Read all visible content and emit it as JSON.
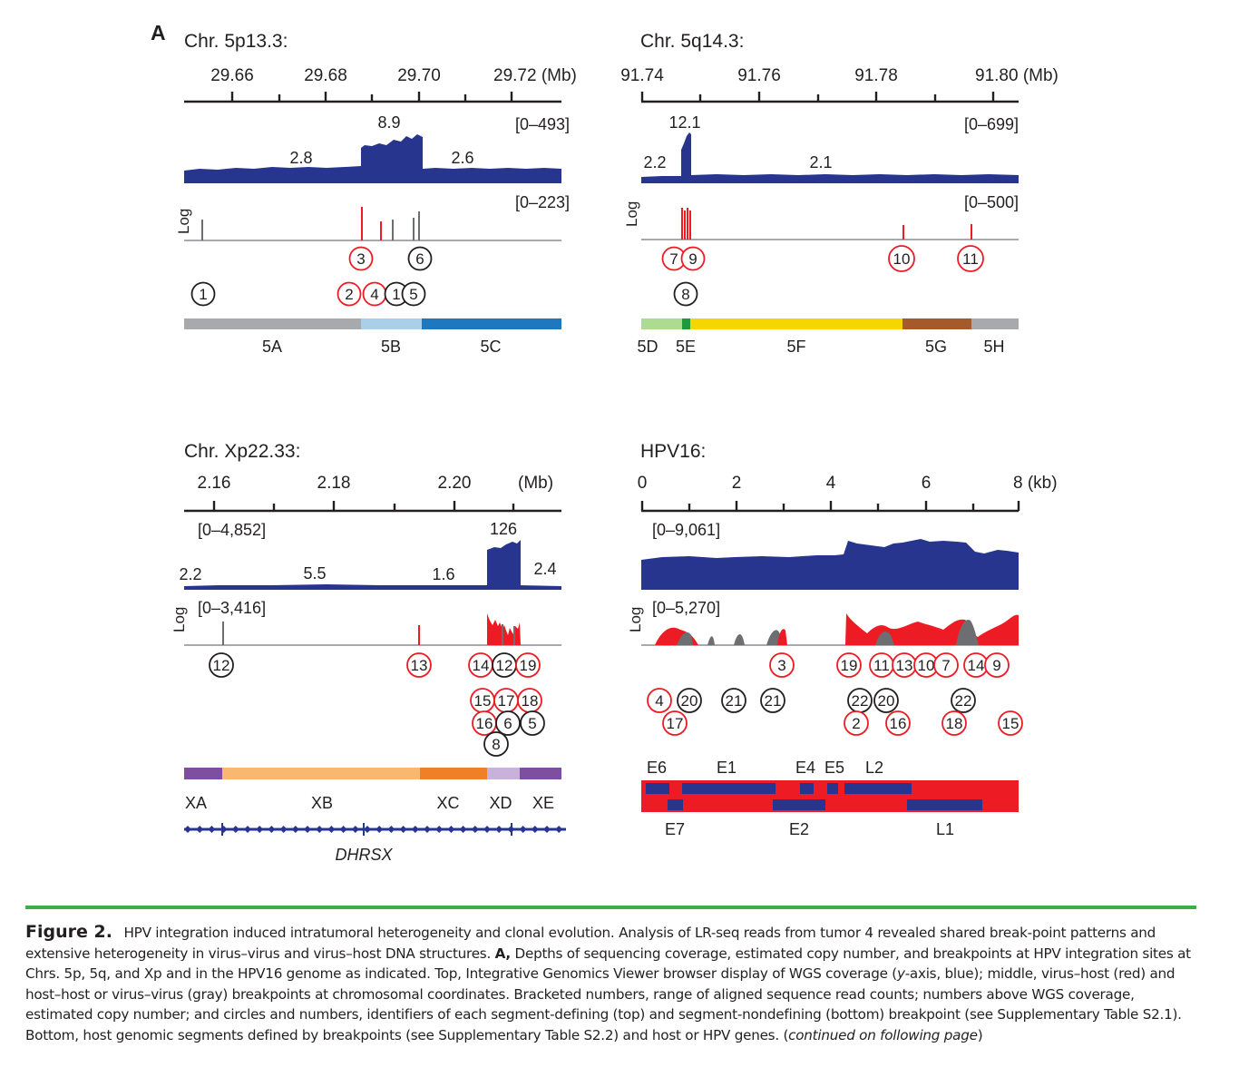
{
  "panel_letter": "A",
  "panels": {
    "chr5p": {
      "title": "Chr. 5p13.3:",
      "ticks": [
        "29.66",
        "29.68",
        "29.70",
        "29.72 (Mb)"
      ],
      "cov_range": "[0–493]",
      "cn_labels": [
        "2.8",
        "8.9",
        "2.6"
      ],
      "bp_range": "[0–223]",
      "log_label": "Log",
      "circles": [
        "3",
        "6",
        "1",
        "2",
        "4",
        "1",
        "5"
      ],
      "segments": [
        "5A",
        "5B",
        "5C"
      ]
    },
    "chr5q": {
      "title": "Chr. 5q14.3:",
      "ticks": [
        "91.74",
        "91.76",
        "91.78",
        "91.80 (Mb)"
      ],
      "cov_range": "[0–699]",
      "cn_labels": [
        "12.1",
        "2.2",
        "2.1"
      ],
      "bp_range": "[0–500]",
      "log_label": "Log",
      "circles": [
        "7",
        "9",
        "10",
        "11",
        "8"
      ],
      "segments": [
        "5D",
        "5E",
        "5F",
        "5G",
        "5H"
      ]
    },
    "chrX": {
      "title": "Chr. Xp22.33:",
      "ticks": [
        "2.16",
        "2.18",
        "2.20",
        "(Mb)"
      ],
      "cov_range": "[0–4,852]",
      "cn_labels": [
        "126",
        "2.2",
        "5.5",
        "1.6",
        "2.4"
      ],
      "bp_range": "[0–3,416]",
      "log_label": "Log",
      "circles": [
        "12",
        "13",
        "14",
        "12",
        "19",
        "15",
        "17",
        "18",
        "16",
        "6",
        "5",
        "8"
      ],
      "segments": [
        "XA",
        "XB",
        "XC",
        "XD",
        "XE"
      ],
      "gene": "DHRSX"
    },
    "hpv16": {
      "title": "HPV16:",
      "ticks": [
        "0",
        "2",
        "4",
        "6",
        "8 (kb)"
      ],
      "cov_range": "[0–9,061]",
      "bp_range": "[0–5,270]",
      "log_label": "Log",
      "circles": [
        "3",
        "19",
        "11",
        "13",
        "10",
        "7",
        "14",
        "9",
        "4",
        "20",
        "21",
        "21",
        "22",
        "20",
        "22",
        "17",
        "2",
        "16",
        "18",
        "15"
      ],
      "genes_top": [
        "E6",
        "E1",
        "E4",
        "E5",
        "L2"
      ],
      "genes_bottom": [
        "E7",
        "E2",
        "L1"
      ]
    }
  },
  "colors": {
    "coverage": "#27358f",
    "virus_host": "#ed1c24",
    "gray_bp": "#6d6e71",
    "rule": "#3fae49"
  },
  "caption": {
    "title": "Figure 2.",
    "text1": "HPV integration induced intratumoral heterogeneity and clonal evolution. Analysis of LR-seq reads from tumor 4 revealed shared break-point patterns and extensive heterogeneity in virus–virus and virus–host DNA structures.",
    "a_label": "A,",
    "text2": "Depths of sequencing coverage, estimated copy number, and breakpoints at HPV integration sites at Chrs. 5p, 5q, and Xp and in the HPV16 genome as indicated. Top, Integrative Genomics Viewer browser display of WGS coverage (",
    "y_axis": "y",
    "text3": "-axis, blue); middle, virus–host (red) and host–host or virus–virus (gray) breakpoints at chromosomal coordinates. Bracketed numbers, range of aligned sequence read counts; numbers above WGS coverage, estimated copy number; and circles and numbers, identifiers of each segment-defining (top) and segment-nondefining (bottom) breakpoint (see Supplementary Table S2.1). Bottom, host genomic segments defined by breakpoints (see Supplementary Table S2.2) and host or HPV genes. (",
    "continued": "continued on following page",
    "text4": ")"
  }
}
